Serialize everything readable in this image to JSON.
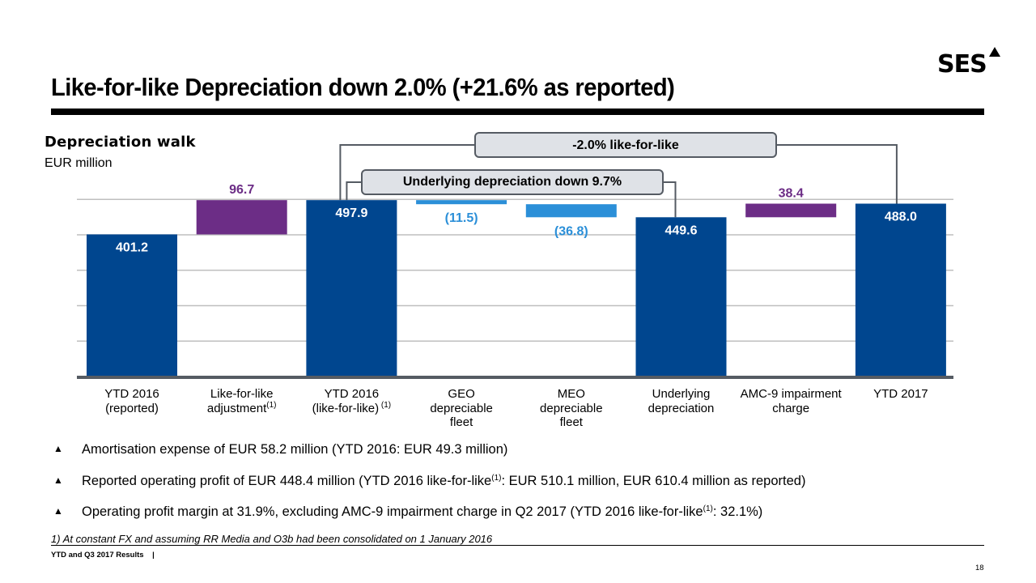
{
  "brand": {
    "logo_text": "SES",
    "logo_icon": "triangle-up-icon"
  },
  "title": "Like-for-like Depreciation down 2.0% (+21.6% as reported)",
  "chart_heading": "Depreciation walk",
  "unit_label": "EUR million",
  "callouts": {
    "like_for_like": "-2.0% like-for-like",
    "underlying": "Underlying depreciation down 9.7%"
  },
  "colors": {
    "total": "#00468f",
    "adjustment": "#6c2d86",
    "decrease": "#2b8fd8",
    "gridline": "#bfbfbf",
    "axis": "#555b63"
  },
  "chart_data": {
    "type": "bar",
    "subtype": "waterfall",
    "title": "Depreciation walk",
    "ylabel": "EUR million",
    "xlabel": "",
    "ylim": [
      0,
      500
    ],
    "grid": true,
    "categories": [
      "YTD 2016 (reported)",
      "Like-for-like adjustment(1)",
      "YTD 2016 (like-for-like)(1)",
      "GEO depreciable fleet",
      "MEO depreciable fleet",
      "Underlying depreciation",
      "AMC-9 impairment charge",
      "YTD 2017"
    ],
    "category_lines": [
      [
        "YTD 2016",
        "(reported)"
      ],
      [
        "Like-for-like",
        "adjustment"
      ],
      [
        "YTD 2016",
        "(like-for-like)"
      ],
      [
        "GEO",
        "depreciable",
        "fleet"
      ],
      [
        "MEO",
        "depreciable",
        "fleet"
      ],
      [
        "Underlying",
        "depreciation"
      ],
      [
        "AMC-9 impairment",
        "charge"
      ],
      [
        "YTD 2017"
      ]
    ],
    "category_footnote": [
      false,
      true,
      true,
      false,
      false,
      false,
      false,
      false
    ],
    "footnote_marker": "(1)",
    "steps": [
      {
        "kind": "total",
        "value": 401.2,
        "label": "401.2"
      },
      {
        "kind": "increase",
        "value": 96.7,
        "label": "96.7"
      },
      {
        "kind": "total",
        "value": 497.9,
        "label": "497.9"
      },
      {
        "kind": "decrease",
        "value": -11.5,
        "label": "(11.5)"
      },
      {
        "kind": "decrease",
        "value": -36.8,
        "label": "(36.8)"
      },
      {
        "kind": "total",
        "value": 449.6,
        "label": "449.6"
      },
      {
        "kind": "increase",
        "value": 38.4,
        "label": "38.4"
      },
      {
        "kind": "total",
        "value": 488.0,
        "label": "488.0"
      }
    ],
    "annotations": [
      "-2.0% like-for-like",
      "Underlying depreciation down 9.7%"
    ]
  },
  "bullets": [
    {
      "text": "Amortisation expense of EUR 58.2 million (YTD 2016: EUR 49.3 million)"
    },
    {
      "text_before": "Reported operating profit of EUR 448.4 million (YTD 2016 like-for-like",
      "sup": "(1)",
      "text_after": ": EUR 510.1 million, EUR 610.4 million as reported)"
    },
    {
      "text_before": "Operating profit margin at 31.9%, excluding AMC-9 impairment charge in Q2 2017 (YTD 2016 like-for-like",
      "sup": "(1)",
      "text_after": ": 32.1%)"
    }
  ],
  "bullet_icon": "▲",
  "footnote": "1)   At constant FX and assuming RR Media and O3b had been consolidated on 1 January 2016",
  "footer": {
    "text": "YTD and Q3 2017 Results    |",
    "page_number": "18"
  }
}
